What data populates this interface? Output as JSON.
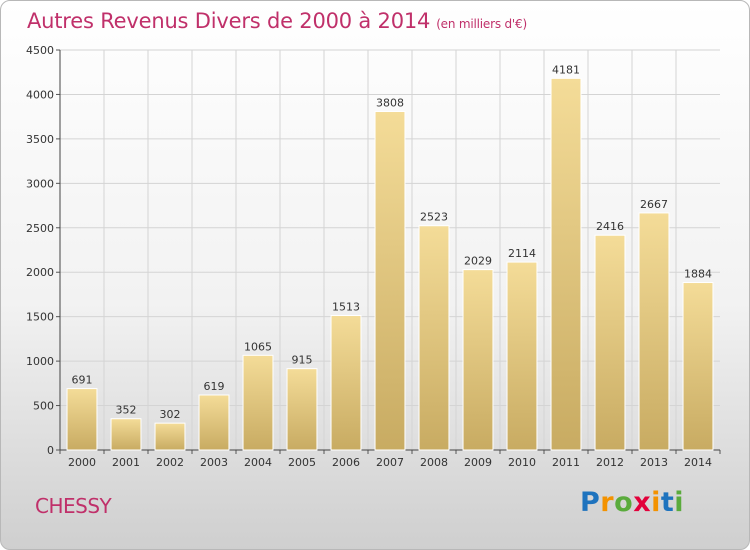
{
  "chart_data": {
    "type": "bar",
    "title": "Autres Revenus Divers de 2000 à 2014",
    "subtitle": "(en milliers d'€)",
    "categories": [
      "2000",
      "2001",
      "2002",
      "2003",
      "2004",
      "2005",
      "2006",
      "2007",
      "2008",
      "2009",
      "2010",
      "2011",
      "2012",
      "2013",
      "2014"
    ],
    "values": [
      691,
      352,
      302,
      619,
      1065,
      915,
      1513,
      3808,
      2523,
      2029,
      2114,
      4181,
      2416,
      2667,
      1884
    ],
    "xlabel": "",
    "ylabel": "",
    "ylim": [
      0,
      4500
    ],
    "yticks": [
      0,
      500,
      1000,
      1500,
      2000,
      2500,
      3000,
      3500,
      4000,
      4500
    ],
    "grid": true,
    "bar_color": "#e3c57c"
  },
  "footer": {
    "place": "CHESSY"
  },
  "logo": {
    "letters": [
      "P",
      "r",
      "o",
      "x",
      "i",
      "t",
      "i"
    ],
    "colors": [
      "#1e73be",
      "#f39200",
      "#5aab3c",
      "#e2003a",
      "#f39200",
      "#1e73be",
      "#5aab3c"
    ]
  }
}
